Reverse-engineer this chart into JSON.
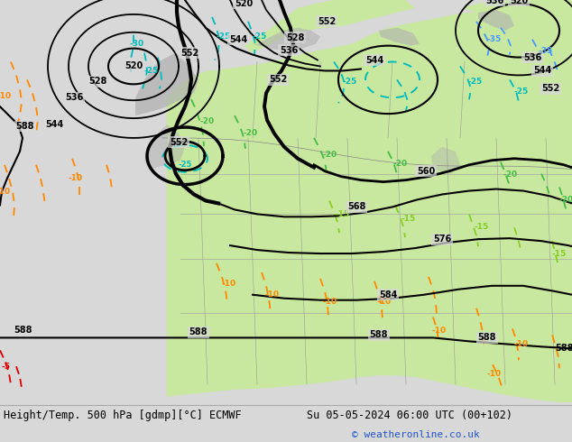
{
  "title_left": "Height/Temp. 500 hPa [gdmp][°C] ECMWF",
  "title_right": "Su 05-05-2024 06:00 UTC (00+102)",
  "copyright": "© weatheronline.co.uk",
  "bg_color": "#d8d8d8",
  "green_fill": "#c8e8a0",
  "gray_land": "#b8b8b8",
  "figsize": [
    6.34,
    4.9
  ],
  "dpi": 100
}
